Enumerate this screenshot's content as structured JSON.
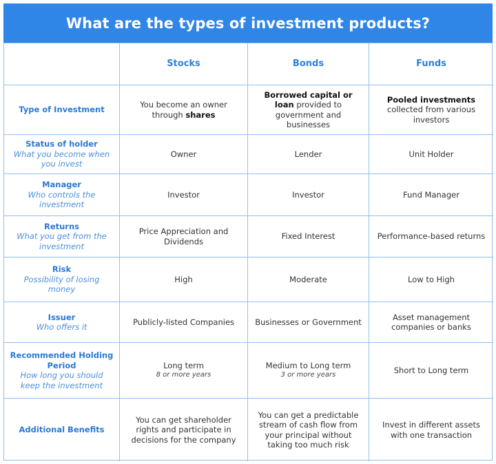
{
  "title": "What are the types of investment products?",
  "colors": {
    "banner": "#2f86e6",
    "label": "#2a79d4",
    "border": "#8fc0ee"
  },
  "columns": [
    "",
    "Stocks",
    "Bonds",
    "Funds"
  ],
  "rows": [
    {
      "label": "Type of Investment",
      "label_sub": "",
      "cells": [
        {
          "parts": [
            {
              "t": "You become an owner through ",
              "b": false
            },
            {
              "t": "shares",
              "b": true
            }
          ],
          "sub": ""
        },
        {
          "parts": [
            {
              "t": "Borrowed capital or loan",
              "b": true
            },
            {
              "t": " provided to government and businesses",
              "b": false
            }
          ],
          "sub": ""
        },
        {
          "parts": [
            {
              "t": "Pooled investments",
              "b": true
            },
            {
              "t": " collected from various investors",
              "b": false
            }
          ],
          "sub": ""
        }
      ]
    },
    {
      "label": "Status of holder",
      "label_sub": "What you become when you invest",
      "cells": [
        {
          "parts": [
            {
              "t": "Owner",
              "b": false
            }
          ],
          "sub": ""
        },
        {
          "parts": [
            {
              "t": "Lender",
              "b": false
            }
          ],
          "sub": ""
        },
        {
          "parts": [
            {
              "t": "Unit Holder",
              "b": false
            }
          ],
          "sub": ""
        }
      ]
    },
    {
      "label": "Manager",
      "label_sub": "Who controls the investment",
      "cells": [
        {
          "parts": [
            {
              "t": "Investor",
              "b": false
            }
          ],
          "sub": ""
        },
        {
          "parts": [
            {
              "t": "Investor",
              "b": false
            }
          ],
          "sub": ""
        },
        {
          "parts": [
            {
              "t": "Fund Manager",
              "b": false
            }
          ],
          "sub": ""
        }
      ]
    },
    {
      "label": "Returns",
      "label_sub": "What you get from the investment",
      "cells": [
        {
          "parts": [
            {
              "t": "Price Appreciation and Dividends",
              "b": false
            }
          ],
          "sub": ""
        },
        {
          "parts": [
            {
              "t": "Fixed Interest",
              "b": false
            }
          ],
          "sub": ""
        },
        {
          "parts": [
            {
              "t": "Performance-based returns",
              "b": false
            }
          ],
          "sub": ""
        }
      ]
    },
    {
      "label": "Risk",
      "label_sub": "Possibility of losing money",
      "cells": [
        {
          "parts": [
            {
              "t": "High",
              "b": false
            }
          ],
          "sub": ""
        },
        {
          "parts": [
            {
              "t": "Moderate",
              "b": false
            }
          ],
          "sub": ""
        },
        {
          "parts": [
            {
              "t": "Low to High",
              "b": false
            }
          ],
          "sub": ""
        }
      ]
    },
    {
      "label": "Issuer",
      "label_sub": "Who offers it",
      "cells": [
        {
          "parts": [
            {
              "t": "Publicly-listed Companies",
              "b": false
            }
          ],
          "sub": ""
        },
        {
          "parts": [
            {
              "t": "Businesses or Government",
              "b": false
            }
          ],
          "sub": ""
        },
        {
          "parts": [
            {
              "t": "Asset management companies or banks",
              "b": false
            }
          ],
          "sub": ""
        }
      ]
    },
    {
      "label": "Recommended Holding Period",
      "label_sub": "How long you should keep the investment",
      "cells": [
        {
          "parts": [
            {
              "t": "Long term",
              "b": false
            }
          ],
          "sub": "8 or more years"
        },
        {
          "parts": [
            {
              "t": "Medium to Long term",
              "b": false
            }
          ],
          "sub": "3 or more years"
        },
        {
          "parts": [
            {
              "t": "Short to Long term",
              "b": false
            }
          ],
          "sub": ""
        }
      ]
    },
    {
      "label": "Additional Benefits",
      "label_sub": "",
      "cells": [
        {
          "parts": [
            {
              "t": "You can get shareholder rights and participate in decisions for the company",
              "b": false
            }
          ],
          "sub": ""
        },
        {
          "parts": [
            {
              "t": "You can get a predictable stream of cash flow from your principal without taking too much risk",
              "b": false
            }
          ],
          "sub": ""
        },
        {
          "parts": [
            {
              "t": "Invest in different assets with one transaction",
              "b": false
            }
          ],
          "sub": ""
        }
      ]
    }
  ]
}
